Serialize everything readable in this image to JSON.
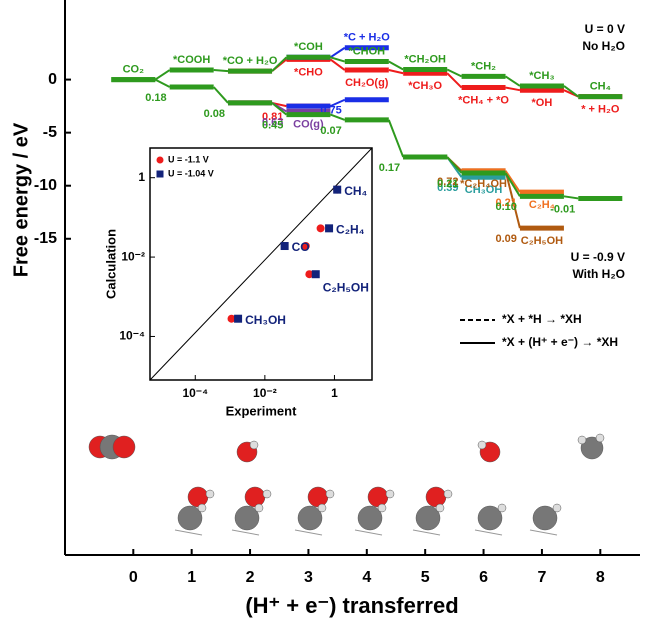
{
  "chart_data": [
    {
      "type": "energy-diagram",
      "y_label": "Free energy / eV",
      "x_label": "(H⁺ + e⁻) transferred",
      "x": [
        0,
        1,
        2,
        3,
        4,
        5,
        6,
        7,
        8
      ],
      "xlim": [
        -1.17,
        8.68
      ],
      "xticks": [
        0,
        1,
        2,
        3,
        4,
        5,
        6,
        7,
        8
      ],
      "ylim": [
        -44.8,
        7.5
      ],
      "yticks": [
        0,
        -5,
        -10,
        -15
      ],
      "conditions": [
        [
          "U = 0 V",
          "No H₂O"
        ],
        [
          "U = -0.9 V",
          "With H₂O"
        ]
      ],
      "legend": [
        "*X + *H → *XH",
        "*X + (H⁺ + e⁻) → *XH"
      ],
      "series": [
        {
          "color": "#ee1c1c",
          "label_side": "below",
          "values": [
            null,
            null,
            0.8,
            1.9,
            0.9,
            0.6,
            -0.75,
            -1.0,
            -1.6
          ],
          "labels": [
            null,
            null,
            null,
            "*CHO",
            "CH₂O(g)",
            "*CH₃O",
            "*CH₄ + *O",
            "*OH",
            "* + H₂O"
          ]
        },
        {
          "color": "#1a2ee6",
          "label_side": "above",
          "values": [
            null,
            null,
            null,
            2.1,
            3.0,
            null,
            null,
            null,
            null
          ],
          "labels": [
            null,
            null,
            null,
            null,
            "*C + H₂O",
            null,
            null,
            null,
            null
          ]
        },
        {
          "color": "#2e9a1e",
          "label_side": "above",
          "values": [
            0,
            0.9,
            0.8,
            2.1,
            1.7,
            0.95,
            0.3,
            -0.6,
            -1.6
          ],
          "labels": [
            "CO₂",
            "*COOH",
            "*CO + H₂O",
            "*COH",
            "*CHOH",
            "*CH₂OH",
            "*CH₂",
            "*CH₃",
            "CH₄"
          ]
        },
        {
          "color": "#ee1c1c",
          "label_side": "below",
          "values": [
            null,
            null,
            -2.2,
            -2.5,
            null,
            null,
            null,
            null,
            null
          ],
          "barriers": [
            null,
            null,
            null,
            0.81,
            null,
            null,
            null,
            null,
            null
          ]
        },
        {
          "color": "#7a3fa0",
          "label_side": "below",
          "values": [
            null,
            null,
            -2.2,
            -3.0,
            null,
            null,
            null,
            null,
            null
          ],
          "labels": [
            null,
            null,
            null,
            "CO(g)",
            null,
            null,
            null,
            null,
            null
          ],
          "barriers": [
            null,
            null,
            null,
            0.63,
            null,
            null,
            null,
            null,
            null
          ]
        },
        {
          "color": "#1a2ee6",
          "label_side": "below",
          "values": [
            null,
            null,
            null,
            -2.5,
            -1.9,
            null,
            null,
            null,
            null
          ],
          "barriers": [
            null,
            null,
            null,
            null,
            0.75,
            null,
            null,
            null,
            null
          ]
        },
        {
          "color": "#2a9d9d",
          "label_side": "below",
          "values": [
            null,
            null,
            null,
            null,
            null,
            -7.3,
            -9.2,
            null,
            null
          ],
          "labels": [
            null,
            null,
            null,
            null,
            null,
            null,
            "CH₃OH",
            null,
            null
          ],
          "barriers": [
            null,
            null,
            null,
            null,
            null,
            null,
            0.39,
            null,
            null
          ]
        },
        {
          "color": "#b05a10",
          "label_side": "below",
          "values": [
            null,
            null,
            null,
            null,
            null,
            -7.3,
            -8.6,
            -14.0,
            null
          ],
          "labels": [
            null,
            null,
            null,
            null,
            null,
            null,
            "*C₂H₄OH",
            "C₂H₅OH",
            null
          ],
          "barriers": [
            null,
            null,
            null,
            null,
            null,
            null,
            0.72,
            0.09,
            null
          ]
        },
        {
          "color": "#f07020",
          "label_side": "below",
          "values": [
            null,
            null,
            null,
            null,
            null,
            null,
            -8.6,
            -10.6,
            null
          ],
          "labels": [
            null,
            null,
            null,
            null,
            null,
            null,
            null,
            "C₂H₄",
            null
          ],
          "barriers": [
            null,
            null,
            null,
            null,
            null,
            null,
            null,
            0.21,
            null
          ]
        },
        {
          "color": "#2e9a1e",
          "label_side": "below",
          "values": [
            0,
            -0.7,
            -2.2,
            -3.3,
            -3.8,
            -7.3,
            -8.8,
            -11.0,
            -11.2
          ],
          "barriers": [
            null,
            0.18,
            0.08,
            0.45,
            0.07,
            0.17,
            0.21,
            {
              "value": 0.1,
              "label": "0.10"
            },
            -0.01
          ]
        }
      ]
    },
    {
      "type": "scatter",
      "x_label": "Experiment",
      "y_label": "Calculation",
      "log_scale": true,
      "xlim": [
        5e-06,
        12
      ],
      "xticks": [
        {
          "value": 0.0001,
          "label": "10⁻⁴"
        },
        {
          "value": 0.01,
          "label": "10⁻²"
        },
        1
      ],
      "ylim": [
        8e-06,
        5.6
      ],
      "yticks": [
        {
          "value": 0.0001,
          "label": "10⁻⁴"
        },
        {
          "value": 0.01,
          "label": "10⁻²"
        },
        1
      ],
      "categories": [
        "CH₄",
        "C₂H₄",
        "CO",
        "C₂H₅OH",
        "CH₃OH"
      ],
      "series": [
        {
          "name": "U = -1.1 V",
          "color": "#ee1c1c",
          "marker": "circle",
          "x": [
            1.2,
            0.4,
            0.15,
            0.19,
            0.0011
          ],
          "values": [
            0.5,
            0.053,
            0.019,
            0.0037,
            0.00028
          ]
        },
        {
          "name": "U = -1.04 V",
          "color": "#13237a",
          "marker": "square",
          "x": [
            1.2,
            0.7,
            0.037,
            0.29,
            0.0017
          ],
          "values": [
            0.5,
            0.053,
            0.019,
            0.0037,
            0.00028
          ]
        }
      ]
    }
  ]
}
